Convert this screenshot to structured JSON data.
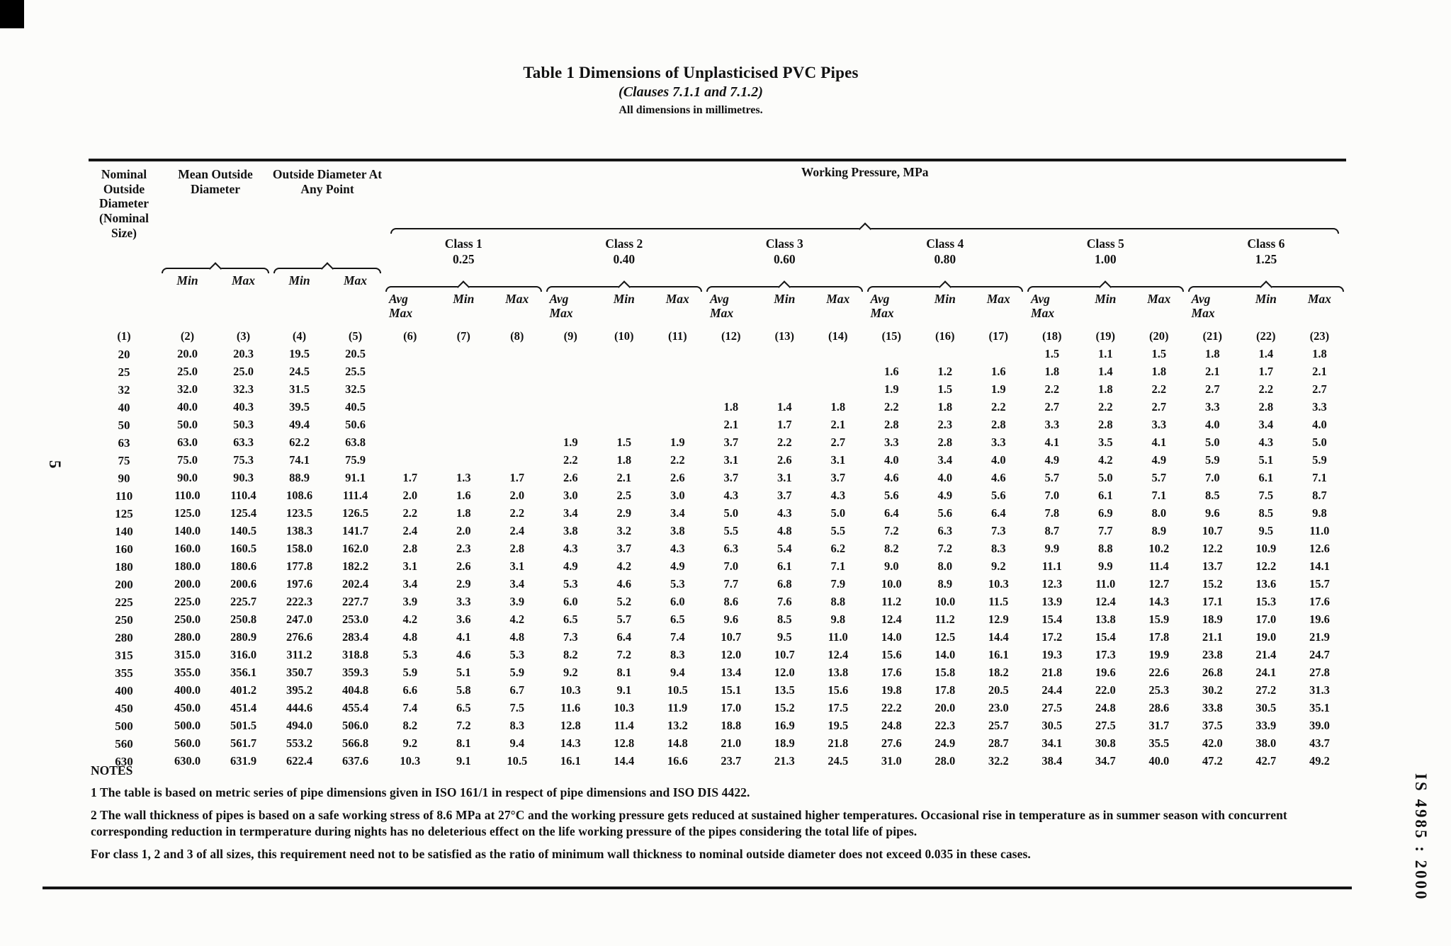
{
  "page": {
    "side_left": "5",
    "side_right": "IS 4985 : 2000"
  },
  "title": {
    "main": "Table 1 Dimensions of Unplasticised PVC Pipes",
    "clauses": "(Clauses 7.1.1 and 7.1.2)",
    "units": "All dimensions in millimetres."
  },
  "table": {
    "col1_header": "Nominal Outside Diameter (Nominal Size)",
    "group_mean": "Mean Outside Diameter",
    "group_any_point": "Outside Diameter At Any Point",
    "group_pressure": "Working Pressure, MPa",
    "lbl_min": "Min",
    "lbl_max": "Max",
    "lbl_avgmax": "Avg\nMax",
    "classes": [
      {
        "name": "Class 1",
        "pressure": "0.25"
      },
      {
        "name": "Class 2",
        "pressure": "0.40"
      },
      {
        "name": "Class 3",
        "pressure": "0.60"
      },
      {
        "name": "Class 4",
        "pressure": "0.80"
      },
      {
        "name": "Class 5",
        "pressure": "1.00"
      },
      {
        "name": "Class 6",
        "pressure": "1.25"
      }
    ],
    "col_numbers": [
      "(1)",
      "(2)",
      "(3)",
      "(4)",
      "(5)",
      "(6)",
      "(7)",
      "(8)",
      "(9)",
      "(10)",
      "(11)",
      "(12)",
      "(13)",
      "(14)",
      "(15)",
      "(16)",
      "(17)",
      "(18)",
      "(19)",
      "(20)",
      "(21)",
      "(22)",
      "(23)"
    ],
    "rows": [
      [
        "20",
        "20.0",
        "20.3",
        "19.5",
        "20.5",
        "",
        "",
        "",
        "",
        "",
        "",
        "",
        "",
        "",
        "",
        "",
        "",
        "1.5",
        "1.1",
        "1.5",
        "1.8",
        "1.4",
        "1.8"
      ],
      [
        "25",
        "25.0",
        "25.0",
        "24.5",
        "25.5",
        "",
        "",
        "",
        "",
        "",
        "",
        "",
        "",
        "",
        "1.6",
        "1.2",
        "1.6",
        "1.8",
        "1.4",
        "1.8",
        "2.1",
        "1.7",
        "2.1"
      ],
      [
        "32",
        "32.0",
        "32.3",
        "31.5",
        "32.5",
        "",
        "",
        "",
        "",
        "",
        "",
        "",
        "",
        "",
        "1.9",
        "1.5",
        "1.9",
        "2.2",
        "1.8",
        "2.2",
        "2.7",
        "2.2",
        "2.7"
      ],
      [
        "40",
        "40.0",
        "40.3",
        "39.5",
        "40.5",
        "",
        "",
        "",
        "",
        "",
        "",
        "1.8",
        "1.4",
        "1.8",
        "2.2",
        "1.8",
        "2.2",
        "2.7",
        "2.2",
        "2.7",
        "3.3",
        "2.8",
        "3.3"
      ],
      [
        "50",
        "50.0",
        "50.3",
        "49.4",
        "50.6",
        "",
        "",
        "",
        "",
        "",
        "",
        "2.1",
        "1.7",
        "2.1",
        "2.8",
        "2.3",
        "2.8",
        "3.3",
        "2.8",
        "3.3",
        "4.0",
        "3.4",
        "4.0"
      ],
      [
        "63",
        "63.0",
        "63.3",
        "62.2",
        "63.8",
        "",
        "",
        "",
        "1.9",
        "1.5",
        "1.9",
        "3.7",
        "2.2",
        "2.7",
        "3.3",
        "2.8",
        "3.3",
        "4.1",
        "3.5",
        "4.1",
        "5.0",
        "4.3",
        "5.0"
      ],
      [
        "75",
        "75.0",
        "75.3",
        "74.1",
        "75.9",
        "",
        "",
        "",
        "2.2",
        "1.8",
        "2.2",
        "3.1",
        "2.6",
        "3.1",
        "4.0",
        "3.4",
        "4.0",
        "4.9",
        "4.2",
        "4.9",
        "5.9",
        "5.1",
        "5.9"
      ],
      [
        "90",
        "90.0",
        "90.3",
        "88.9",
        "91.1",
        "1.7",
        "1.3",
        "1.7",
        "2.6",
        "2.1",
        "2.6",
        "3.7",
        "3.1",
        "3.7",
        "4.6",
        "4.0",
        "4.6",
        "5.7",
        "5.0",
        "5.7",
        "7.0",
        "6.1",
        "7.1"
      ],
      [
        "110",
        "110.0",
        "110.4",
        "108.6",
        "111.4",
        "2.0",
        "1.6",
        "2.0",
        "3.0",
        "2.5",
        "3.0",
        "4.3",
        "3.7",
        "4.3",
        "5.6",
        "4.9",
        "5.6",
        "7.0",
        "6.1",
        "7.1",
        "8.5",
        "7.5",
        "8.7"
      ],
      [
        "125",
        "125.0",
        "125.4",
        "123.5",
        "126.5",
        "2.2",
        "1.8",
        "2.2",
        "3.4",
        "2.9",
        "3.4",
        "5.0",
        "4.3",
        "5.0",
        "6.4",
        "5.6",
        "6.4",
        "7.8",
        "6.9",
        "8.0",
        "9.6",
        "8.5",
        "9.8"
      ],
      [
        "140",
        "140.0",
        "140.5",
        "138.3",
        "141.7",
        "2.4",
        "2.0",
        "2.4",
        "3.8",
        "3.2",
        "3.8",
        "5.5",
        "4.8",
        "5.5",
        "7.2",
        "6.3",
        "7.3",
        "8.7",
        "7.7",
        "8.9",
        "10.7",
        "9.5",
        "11.0"
      ],
      [
        "160",
        "160.0",
        "160.5",
        "158.0",
        "162.0",
        "2.8",
        "2.3",
        "2.8",
        "4.3",
        "3.7",
        "4.3",
        "6.3",
        "5.4",
        "6.2",
        "8.2",
        "7.2",
        "8.3",
        "9.9",
        "8.8",
        "10.2",
        "12.2",
        "10.9",
        "12.6"
      ],
      [
        "180",
        "180.0",
        "180.6",
        "177.8",
        "182.2",
        "3.1",
        "2.6",
        "3.1",
        "4.9",
        "4.2",
        "4.9",
        "7.0",
        "6.1",
        "7.1",
        "9.0",
        "8.0",
        "9.2",
        "11.1",
        "9.9",
        "11.4",
        "13.7",
        "12.2",
        "14.1"
      ],
      [
        "200",
        "200.0",
        "200.6",
        "197.6",
        "202.4",
        "3.4",
        "2.9",
        "3.4",
        "5.3",
        "4.6",
        "5.3",
        "7.7",
        "6.8",
        "7.9",
        "10.0",
        "8.9",
        "10.3",
        "12.3",
        "11.0",
        "12.7",
        "15.2",
        "13.6",
        "15.7"
      ],
      [
        "225",
        "225.0",
        "225.7",
        "222.3",
        "227.7",
        "3.9",
        "3.3",
        "3.9",
        "6.0",
        "5.2",
        "6.0",
        "8.6",
        "7.6",
        "8.8",
        "11.2",
        "10.0",
        "11.5",
        "13.9",
        "12.4",
        "14.3",
        "17.1",
        "15.3",
        "17.6"
      ],
      [
        "250",
        "250.0",
        "250.8",
        "247.0",
        "253.0",
        "4.2",
        "3.6",
        "4.2",
        "6.5",
        "5.7",
        "6.5",
        "9.6",
        "8.5",
        "9.8",
        "12.4",
        "11.2",
        "12.9",
        "15.4",
        "13.8",
        "15.9",
        "18.9",
        "17.0",
        "19.6"
      ],
      [
        "280",
        "280.0",
        "280.9",
        "276.6",
        "283.4",
        "4.8",
        "4.1",
        "4.8",
        "7.3",
        "6.4",
        "7.4",
        "10.7",
        "9.5",
        "11.0",
        "14.0",
        "12.5",
        "14.4",
        "17.2",
        "15.4",
        "17.8",
        "21.1",
        "19.0",
        "21.9"
      ],
      [
        "315",
        "315.0",
        "316.0",
        "311.2",
        "318.8",
        "5.3",
        "4.6",
        "5.3",
        "8.2",
        "7.2",
        "8.3",
        "12.0",
        "10.7",
        "12.4",
        "15.6",
        "14.0",
        "16.1",
        "19.3",
        "17.3",
        "19.9",
        "23.8",
        "21.4",
        "24.7"
      ],
      [
        "355",
        "355.0",
        "356.1",
        "350.7",
        "359.3",
        "5.9",
        "5.1",
        "5.9",
        "9.2",
        "8.1",
        "9.4",
        "13.4",
        "12.0",
        "13.8",
        "17.6",
        "15.8",
        "18.2",
        "21.8",
        "19.6",
        "22.6",
        "26.8",
        "24.1",
        "27.8"
      ],
      [
        "400",
        "400.0",
        "401.2",
        "395.2",
        "404.8",
        "6.6",
        "5.8",
        "6.7",
        "10.3",
        "9.1",
        "10.5",
        "15.1",
        "13.5",
        "15.6",
        "19.8",
        "17.8",
        "20.5",
        "24.4",
        "22.0",
        "25.3",
        "30.2",
        "27.2",
        "31.3"
      ],
      [
        "450",
        "450.0",
        "451.4",
        "444.6",
        "455.4",
        "7.4",
        "6.5",
        "7.5",
        "11.6",
        "10.3",
        "11.9",
        "17.0",
        "15.2",
        "17.5",
        "22.2",
        "20.0",
        "23.0",
        "27.5",
        "24.8",
        "28.6",
        "33.8",
        "30.5",
        "35.1"
      ],
      [
        "500",
        "500.0",
        "501.5",
        "494.0",
        "506.0",
        "8.2",
        "7.2",
        "8.3",
        "12.8",
        "11.4",
        "13.2",
        "18.8",
        "16.9",
        "19.5",
        "24.8",
        "22.3",
        "25.7",
        "30.5",
        "27.5",
        "31.7",
        "37.5",
        "33.9",
        "39.0"
      ],
      [
        "560",
        "560.0",
        "561.7",
        "553.2",
        "566.8",
        "9.2",
        "8.1",
        "9.4",
        "14.3",
        "12.8",
        "14.8",
        "21.0",
        "18.9",
        "21.8",
        "27.6",
        "24.9",
        "28.7",
        "34.1",
        "30.8",
        "35.5",
        "42.0",
        "38.0",
        "43.7"
      ],
      [
        "630",
        "630.0",
        "631.9",
        "622.4",
        "637.6",
        "10.3",
        "9.1",
        "10.5",
        "16.1",
        "14.4",
        "16.6",
        "23.7",
        "21.3",
        "24.5",
        "31.0",
        "28.0",
        "32.2",
        "38.4",
        "34.7",
        "40.0",
        "47.2",
        "42.7",
        "49.2"
      ]
    ]
  },
  "notes": {
    "heading": "NOTES",
    "note1": "1 The table is based on metric series of pipe dimensions given in ISO 161/1 in respect of pipe dimensions and ISO DIS 4422.",
    "note2": "2 The wall thickness of pipes is based on a safe working stress of 8.6  MPa at 27°C and the working pressure gets reduced at sustained higher temperatures. Occasional rise in temperature as in summer season with concurrent corresponding reduction in termperature during nights has no deleterious effect on the life working pressure of the pipes considering the total life of pipes.",
    "note3": "For class 1, 2 and 3 of all sizes, this requirement need not to be satisfied as the ratio of minimum wall thickness to nominal outside diameter does not exceed 0.035 in these cases."
  }
}
